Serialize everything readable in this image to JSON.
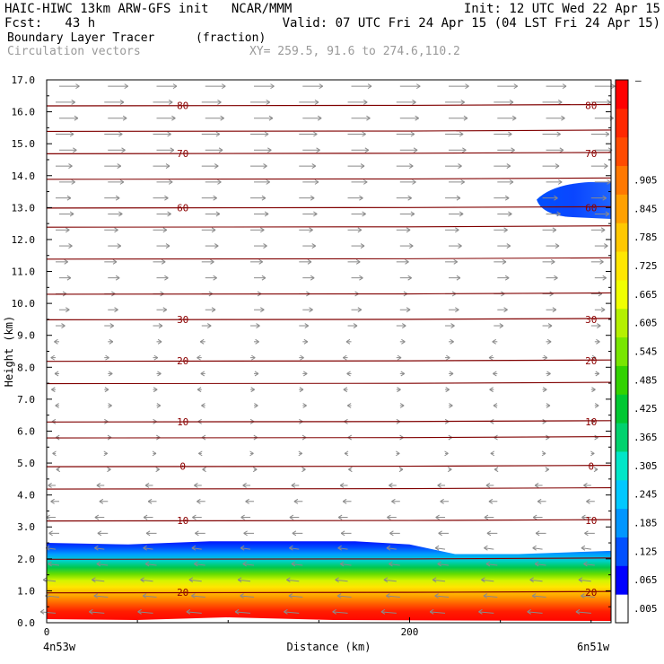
{
  "header": {
    "model_line": "HAIC-HIWC 13km ARW-GFS init   NCAR/MMM",
    "init_line": "Init: 12 UTC Wed 22 Apr 15",
    "fcst_line": "Fcst:   43 h",
    "valid_line": "Valid: 07 UTC Fri 24 Apr 15 (04 LST Fri 24 Apr 15)",
    "field_name": "Boundary Layer Tracer",
    "field_units": "(fraction)",
    "vector_label": "Circulation vectors",
    "xy_label": "XY= 259.5, 91.6 to 274.6,110.2"
  },
  "chart_data": {
    "type": "heatmap",
    "title": "Boundary Layer Tracer",
    "xlabel": "Distance (km)",
    "ylabel": "Height (km)",
    "xlim": [
      0,
      311
    ],
    "ylim": [
      0,
      17
    ],
    "x_ticks": [
      0,
      200
    ],
    "x_tick_labels": [
      "0",
      "200"
    ],
    "x_end_labels": [
      "4n53w",
      "6n51w"
    ],
    "y_ticks": [
      0,
      1,
      2,
      3,
      4,
      5,
      6,
      7,
      8,
      9,
      10,
      11,
      12,
      13,
      14,
      15,
      16,
      17
    ],
    "y_tick_labels": [
      "0.0",
      "1.0",
      "2.0",
      "3.0",
      "4.0",
      "5.0",
      "6.0",
      "7.0",
      "8.0",
      "9.0",
      "10.0",
      "11.0",
      "12.0",
      "13.0",
      "14.0",
      "15.0",
      "16.0",
      "17.0"
    ],
    "colorbar": {
      "labels": [
        ".005",
        ".065",
        ".125",
        ".185",
        ".245",
        ".305",
        ".365",
        ".425",
        ".485",
        ".545",
        ".605",
        ".665",
        ".725",
        ".785",
        ".845",
        ".905"
      ],
      "top_label": "–",
      "colors": [
        "#ffffff",
        "#0000ff",
        "#0050ff",
        "#0096ff",
        "#00c8ff",
        "#00e6c8",
        "#00d26e",
        "#00c832",
        "#32d200",
        "#78e600",
        "#b4f000",
        "#f0ff00",
        "#ffe600",
        "#ffc800",
        "#ffa000",
        "#ff7800",
        "#ff4b00",
        "#ff2800",
        "#ff0000"
      ]
    },
    "tracer_profile": {
      "x": [
        0,
        45,
        90,
        130,
        170,
        200,
        225,
        260,
        311
      ],
      "top_km": [
        2.5,
        2.45,
        2.55,
        2.55,
        2.55,
        2.45,
        2.15,
        2.15,
        2.25
      ]
    },
    "upper_patch": {
      "x_range": [
        270,
        311
      ],
      "z_range": [
        12.7,
        13.8
      ],
      "value": 0.05
    },
    "isotherms": [
      {
        "label": "80",
        "z": 16.2
      },
      {
        "label": "70",
        "z": 14.7
      },
      {
        "label": "60",
        "z": 13.0
      },
      {
        "label": "30",
        "z": 9.5
      },
      {
        "label": "20",
        "z": 8.2
      },
      {
        "label": "10",
        "z": 6.3
      },
      {
        "label": "0",
        "z": 4.9
      },
      {
        "label": "10",
        "z": 3.2
      },
      {
        "label": "20",
        "z": 0.95
      }
    ],
    "extra_lines_z": [
      15.4,
      13.9,
      12.4,
      11.4,
      10.3,
      7.5,
      5.8,
      4.2,
      2.0
    ]
  }
}
